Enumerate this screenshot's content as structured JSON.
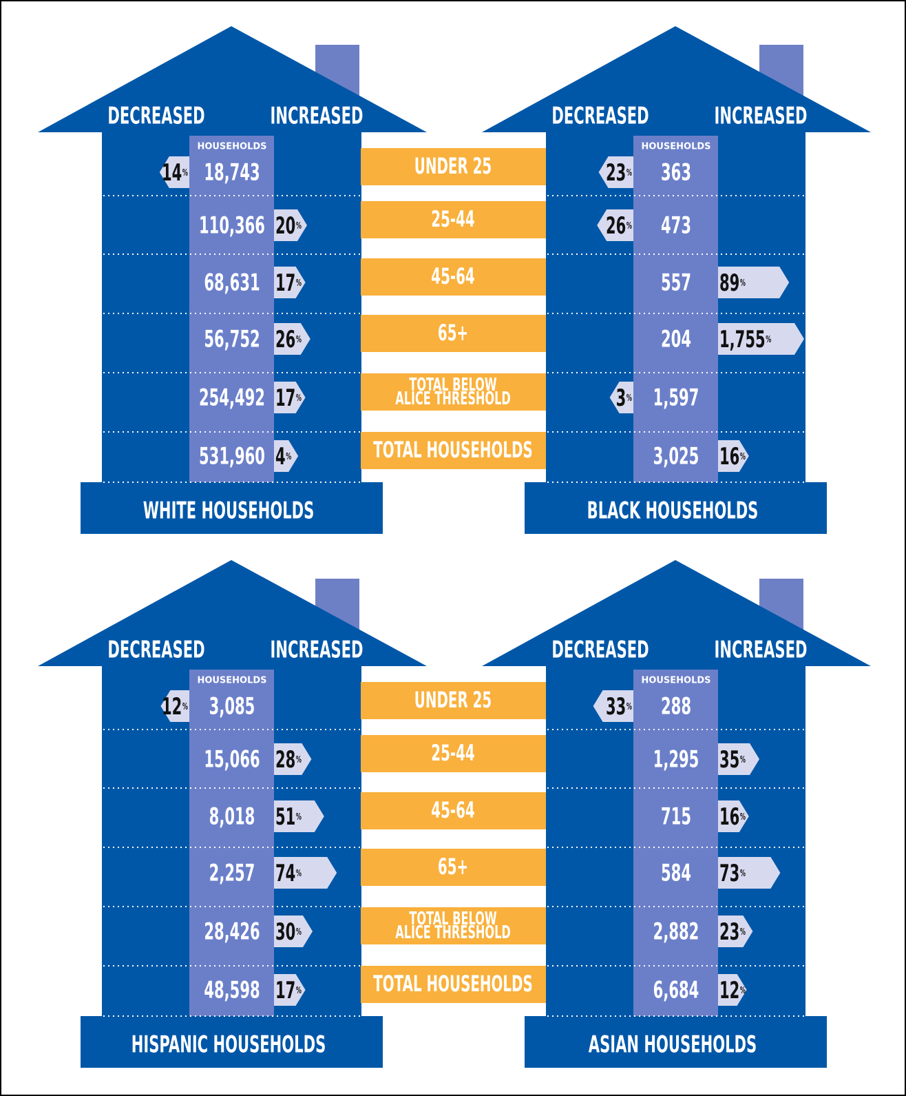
{
  "column_headers": {
    "decreased": "DECREASED",
    "increased": "INCREASED",
    "households": "HOUSEHOLDS"
  },
  "unit": "%",
  "group_labels": [
    [
      "UNDER 25"
    ],
    [
      "25-44"
    ],
    [
      "45-64"
    ],
    [
      "65+"
    ],
    [
      "TOTAL BELOW",
      "ALICE THRESHOLD"
    ],
    [
      "TOTAL HOUSEHOLDS"
    ]
  ],
  "houses": [
    {
      "title": "WHITE HOUSEHOLDS",
      "households": [
        "18,743",
        "110,366",
        "68,631",
        "56,752",
        "254,492",
        "531,960"
      ],
      "change": [
        14,
        20,
        17,
        26,
        17,
        4
      ],
      "direction": [
        "decreased",
        "increased",
        "increased",
        "increased",
        "increased",
        "increased"
      ]
    },
    {
      "title": "BLACK HOUSEHOLDS",
      "households": [
        "363",
        "473",
        "557",
        "204",
        "1,597",
        "3,025"
      ],
      "change": [
        23,
        26,
        89,
        {
          "value": 1755,
          "label": "1,755"
        },
        3,
        16
      ],
      "direction": [
        "decreased",
        "decreased",
        "increased",
        "increased",
        "decreased",
        "increased"
      ]
    },
    {
      "title": "HISPANIC HOUSEHOLDS",
      "households": [
        "3,085",
        "15,066",
        "8,018",
        "2,257",
        "28,426",
        "48,598"
      ],
      "change": [
        12,
        28,
        51,
        74,
        30,
        17
      ],
      "direction": [
        "decreased",
        "increased",
        "increased",
        "increased",
        "increased",
        "increased"
      ]
    },
    {
      "title": "ASIAN HOUSEHOLDS",
      "households": [
        "288",
        "1,295",
        "715",
        "584",
        "2,882",
        "6,684"
      ],
      "change": [
        33,
        35,
        16,
        73,
        23,
        12
      ],
      "direction": [
        "decreased",
        "increased",
        "increased",
        "increased",
        "increased",
        "increased"
      ]
    }
  ]
}
